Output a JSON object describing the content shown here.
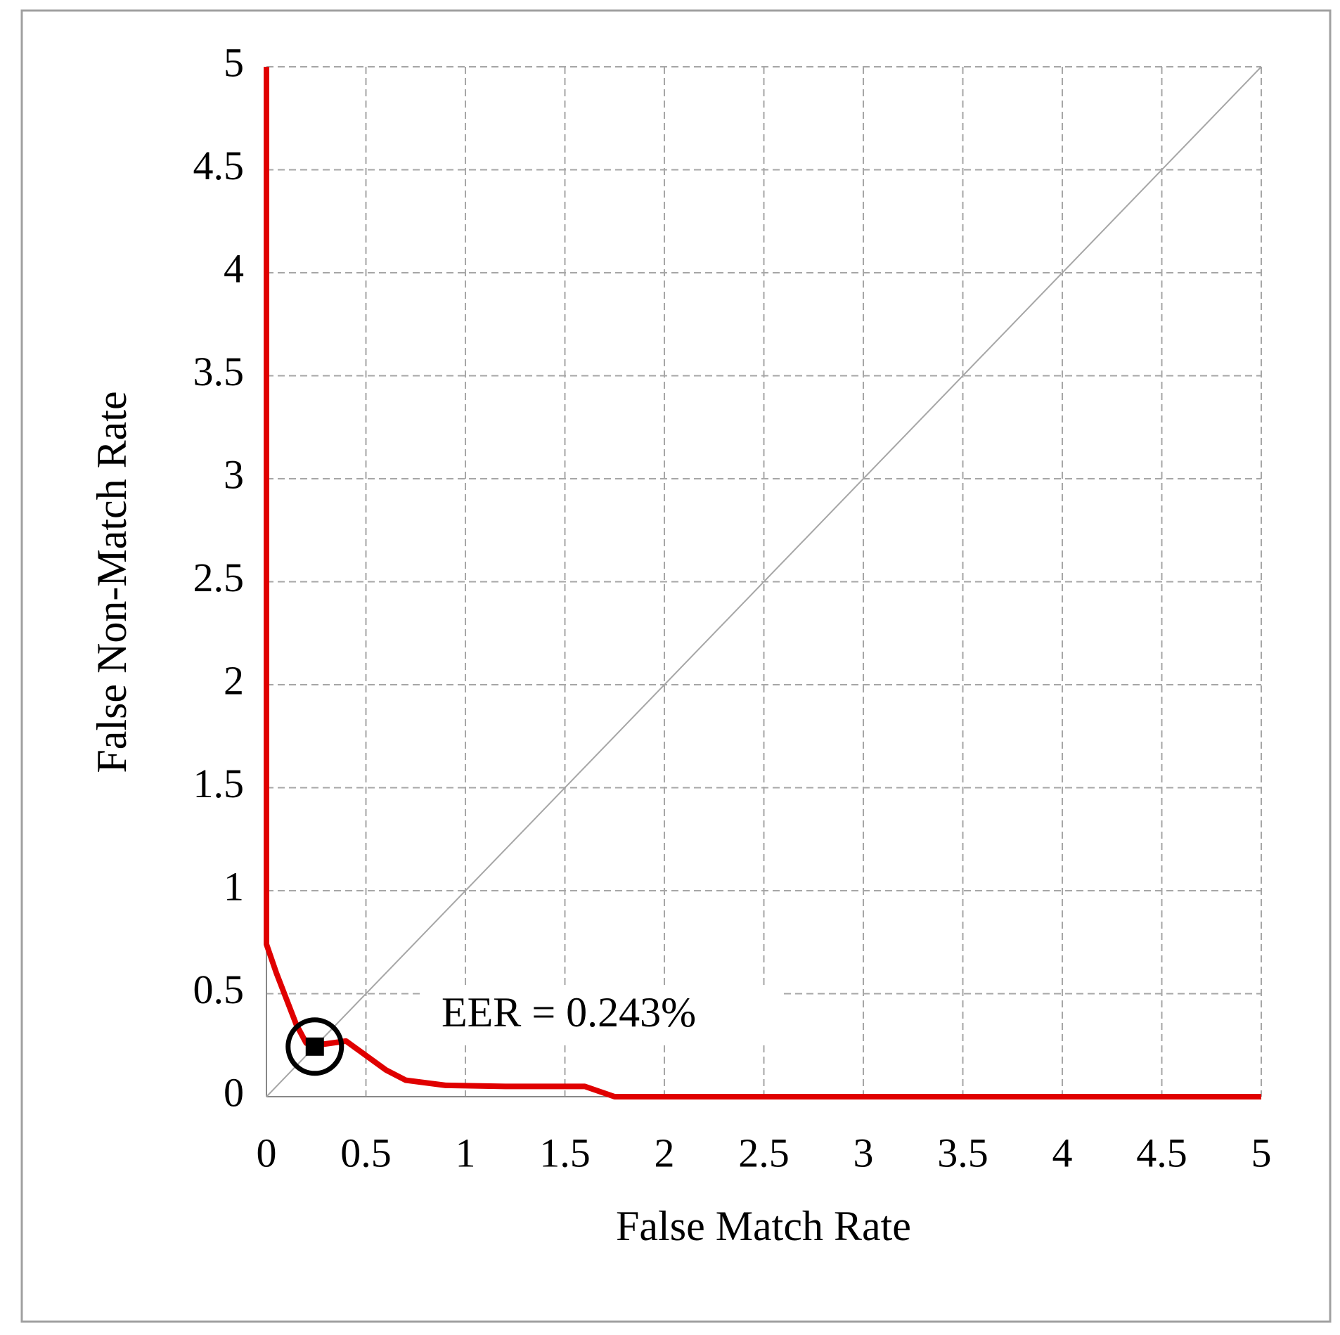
{
  "chart_data": {
    "type": "line",
    "xlabel": "False Match Rate",
    "ylabel": "False Non-Match Rate",
    "xlim": [
      0,
      5
    ],
    "ylim": [
      0,
      5
    ],
    "xticks": [
      0,
      0.5,
      1,
      1.5,
      2,
      2.5,
      3,
      3.5,
      4,
      4.5,
      5
    ],
    "yticks": [
      0,
      0.5,
      1,
      1.5,
      2,
      2.5,
      3,
      3.5,
      4,
      4.5,
      5
    ],
    "grid": true,
    "series": [
      {
        "color": "#a6a6a6",
        "width": 2,
        "x": [
          0,
          5
        ],
        "values": [
          0,
          5
        ]
      },
      {
        "color": "#e00000",
        "width": 8,
        "x": [
          0,
          0,
          0.05,
          0.15,
          0.2,
          0.25,
          0.4,
          0.5,
          0.6,
          0.7,
          0.9,
          1.2,
          1.6,
          1.75,
          5
        ],
        "values": [
          5,
          0.74,
          0.6,
          0.35,
          0.26,
          0.25,
          0.27,
          0.2,
          0.13,
          0.08,
          0.055,
          0.05,
          0.05,
          0,
          0
        ]
      }
    ],
    "marker": {
      "x": 0.243,
      "y": 0.243
    },
    "annotation": "EER = 0.243%"
  }
}
